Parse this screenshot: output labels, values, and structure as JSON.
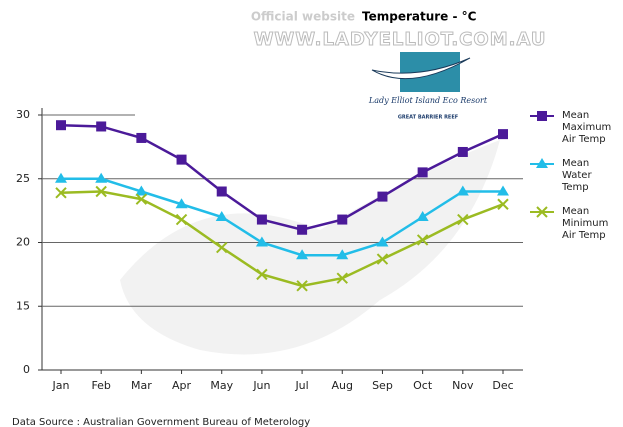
{
  "chart_data": {
    "type": "line",
    "header": "Official website",
    "title": "Temperature - °C",
    "website": "WWW.LADYELLIOT.COM.AU",
    "logo_text": "Lady Elliot Island Eco Resort",
    "logo_subtext": "GREAT BARRIER REEF",
    "source": "Data Source : Australian Government Bureau of Meterology",
    "categories": [
      "Jan",
      "Feb",
      "Mar",
      "Apr",
      "May",
      "Jun",
      "Jul",
      "Aug",
      "Sep",
      "Oct",
      "Nov",
      "Dec"
    ],
    "series": [
      {
        "name": "Mean Maximum Air Temp",
        "color": "#4b1a99",
        "marker": "square",
        "values": [
          29.2,
          29.1,
          28.2,
          26.5,
          24,
          21.8,
          21,
          21.8,
          23.6,
          25.5,
          27.1,
          28.5
        ]
      },
      {
        "name": "Mean Water Temp",
        "color": "#22bde8",
        "marker": "triangle",
        "values": [
          25,
          25,
          24,
          23,
          22,
          20,
          19,
          19,
          20,
          22,
          24,
          24
        ]
      },
      {
        "name": "Mean Minimum Air Temp",
        "color": "#9bbb22",
        "marker": "x",
        "values": [
          23.9,
          24,
          23.4,
          21.8,
          19.6,
          17.5,
          16.6,
          17.2,
          18.7,
          20.2,
          21.8,
          23
        ]
      }
    ],
    "ylim": [
      0,
      30
    ],
    "yticks": [
      0,
      15,
      20,
      25,
      30
    ],
    "grid": true
  }
}
